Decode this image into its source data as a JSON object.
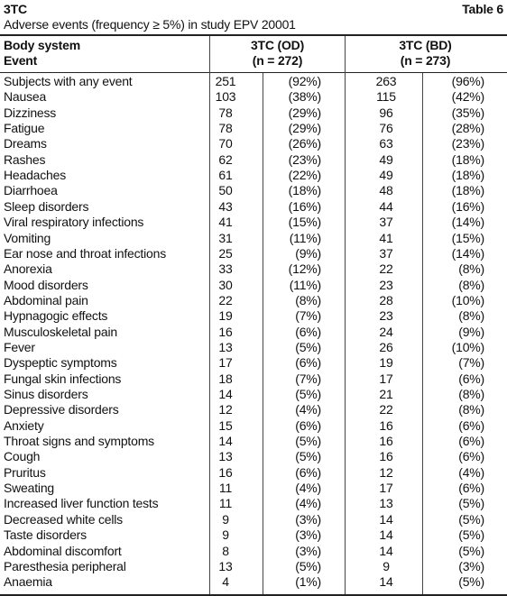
{
  "header": {
    "title": "3TC",
    "table_label": "Table 6",
    "subtitle": "Adverse events (frequency ≥ 5%) in study EPV 20001"
  },
  "table": {
    "header_rows": [
      [
        "Body system",
        "3TC (OD)",
        "3TC (BD)"
      ],
      [
        "Event",
        "(n = 272)",
        "(n = 273)"
      ]
    ],
    "rows": [
      [
        "Subjects with any event",
        "251",
        "(92%)",
        "263",
        "(96%)"
      ],
      [
        "Nausea",
        "103",
        "(38%)",
        "115",
        "(42%)"
      ],
      [
        "Dizziness",
        "78",
        "(29%)",
        "96",
        "(35%)"
      ],
      [
        "Fatigue",
        "78",
        "(29%)",
        "76",
        "(28%)"
      ],
      [
        "Dreams",
        "70",
        "(26%)",
        "63",
        "(23%)"
      ],
      [
        "Rashes",
        "62",
        "(23%)",
        "49",
        "(18%)"
      ],
      [
        "Headaches",
        "61",
        "(22%)",
        "49",
        "(18%)"
      ],
      [
        "Diarrhoea",
        "50",
        "(18%)",
        "48",
        "(18%)"
      ],
      [
        "Sleep disorders",
        "43",
        "(16%)",
        "44",
        "(16%)"
      ],
      [
        "Viral respiratory infections",
        "41",
        "(15%)",
        "37",
        "(14%)"
      ],
      [
        "Vomiting",
        "31",
        "(11%)",
        "41",
        "(15%)"
      ],
      [
        "Ear nose and throat infections",
        "25",
        "(9%)",
        "37",
        "(14%)"
      ],
      [
        "Anorexia",
        "33",
        "(12%)",
        "22",
        "(8%)"
      ],
      [
        "Mood disorders",
        "30",
        "(11%)",
        "23",
        "(8%)"
      ],
      [
        "Abdominal pain",
        "22",
        "(8%)",
        "28",
        "(10%)"
      ],
      [
        "Hypnagogic effects",
        "19",
        "(7%)",
        "23",
        "(8%)"
      ],
      [
        "Musculoskeletal pain",
        "16",
        "(6%)",
        "24",
        "(9%)"
      ],
      [
        "Fever",
        "13",
        "(5%)",
        "26",
        "(10%)"
      ],
      [
        "Dyspeptic symptoms",
        "17",
        "(6%)",
        "19",
        "(7%)"
      ],
      [
        "Fungal skin infections",
        "18",
        "(7%)",
        "17",
        "(6%)"
      ],
      [
        "Sinus disorders",
        "14",
        "(5%)",
        "21",
        "(8%)"
      ],
      [
        "Depressive disorders",
        "12",
        "(4%)",
        "22",
        "(8%)"
      ],
      [
        "Anxiety",
        "15",
        "(6%)",
        "16",
        "(6%)"
      ],
      [
        "Throat signs and symptoms",
        "14",
        "(5%)",
        "16",
        "(6%)"
      ],
      [
        "Cough",
        "13",
        "(5%)",
        "16",
        "(6%)"
      ],
      [
        "Pruritus",
        "16",
        "(6%)",
        "12",
        "(4%)"
      ],
      [
        "Sweating",
        "11",
        "(4%)",
        "17",
        "(6%)"
      ],
      [
        "Increased liver function tests",
        "11",
        "(4%)",
        "13",
        "(5%)"
      ],
      [
        "Decreased white cells",
        "9",
        "(3%)",
        "14",
        "(5%)"
      ],
      [
        "Taste disorders",
        "9",
        "(3%)",
        "14",
        "(5%)"
      ],
      [
        "Abdominal discomfort",
        "8",
        "(3%)",
        "14",
        "(5%)"
      ],
      [
        "Paresthesia peripheral",
        "13",
        "(5%)",
        "9",
        "(3%)"
      ],
      [
        "Anaemia",
        "4",
        "(1%)",
        "14",
        "(5%)"
      ]
    ]
  }
}
